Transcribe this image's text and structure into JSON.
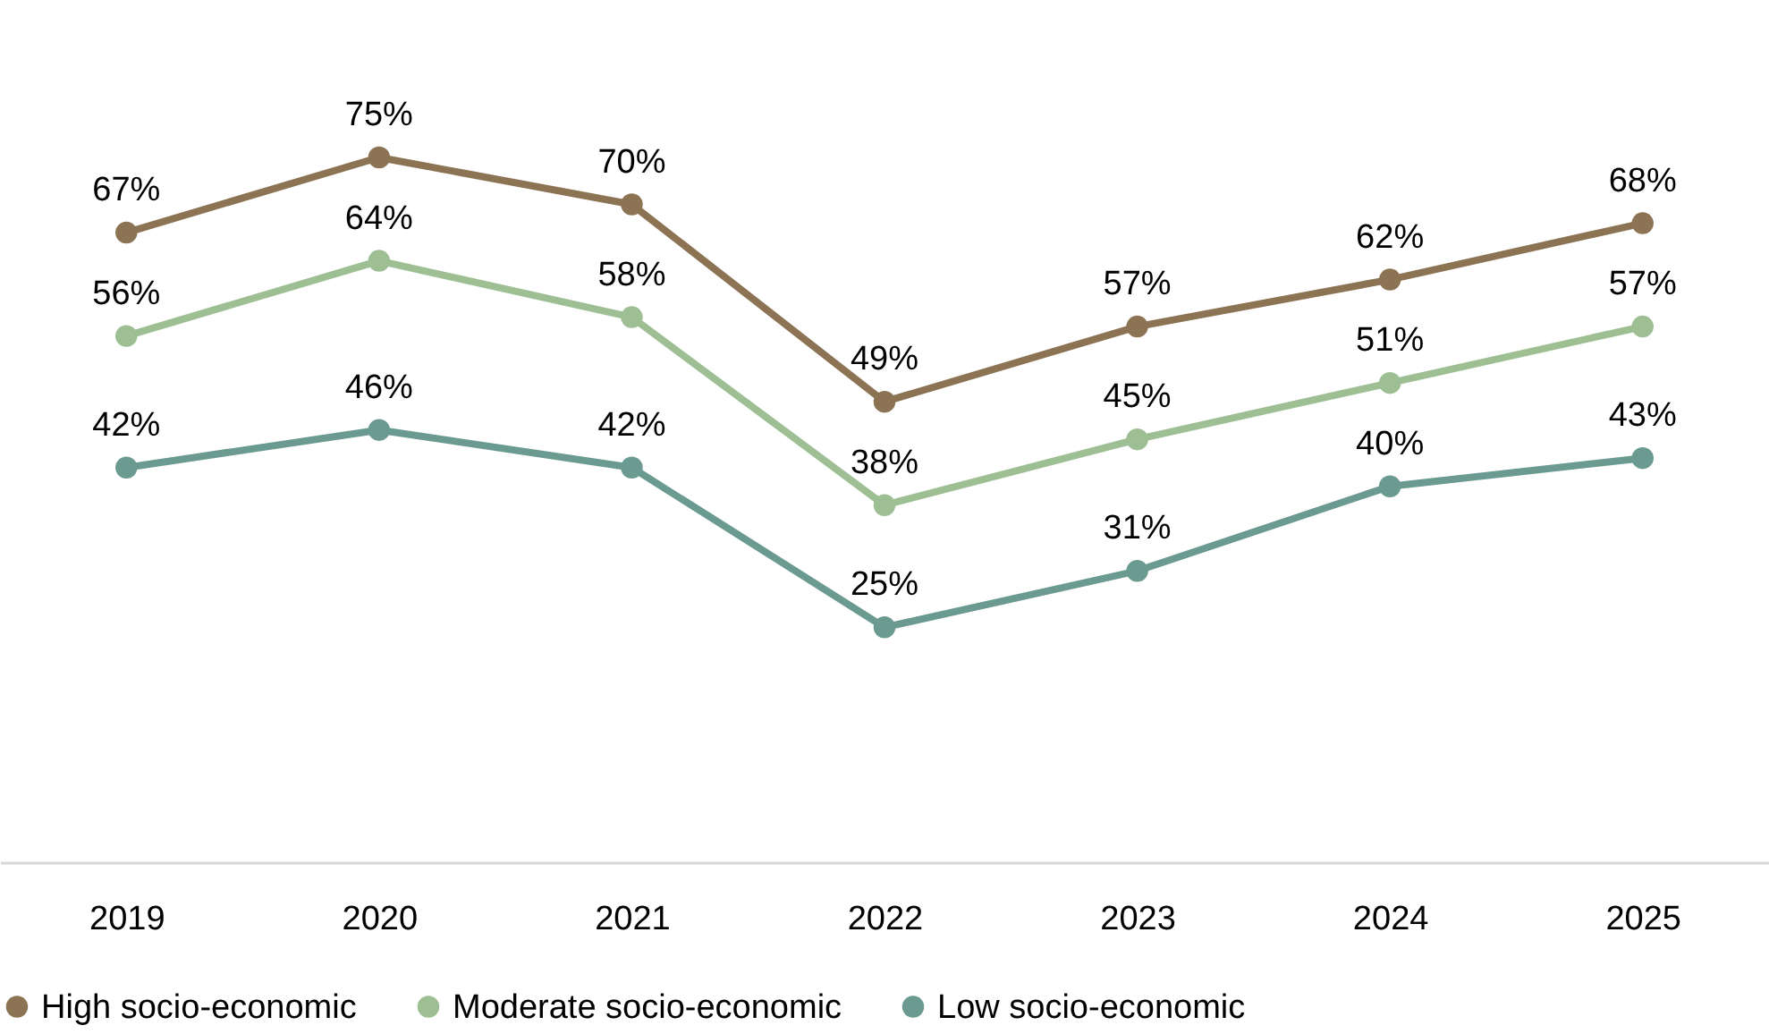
{
  "chart_data": {
    "type": "line",
    "categories": [
      "2019",
      "2020",
      "2021",
      "2022",
      "2023",
      "2024",
      "2025"
    ],
    "series": [
      {
        "name": "High socio-economic",
        "color": "#8c7353",
        "values": [
          67,
          75,
          70,
          49,
          57,
          62,
          68
        ],
        "value_labels": [
          "67%",
          "75%",
          "70%",
          "49%",
          "57%",
          "62%",
          "68%"
        ]
      },
      {
        "name": "Moderate socio-economic",
        "color": "#9dbf93",
        "values": [
          56,
          64,
          58,
          38,
          45,
          51,
          57
        ],
        "value_labels": [
          "56%",
          "64%",
          "58%",
          "38%",
          "45%",
          "51%",
          "57%"
        ]
      },
      {
        "name": "Low socio-economic",
        "color": "#6a9a90",
        "values": [
          42,
          46,
          42,
          25,
          31,
          40,
          43
        ],
        "value_labels": [
          "42%",
          "46%",
          "42%",
          "25%",
          "31%",
          "40%",
          "43%"
        ]
      }
    ],
    "legend": "bottom",
    "marker": "circle",
    "grid": false
  }
}
